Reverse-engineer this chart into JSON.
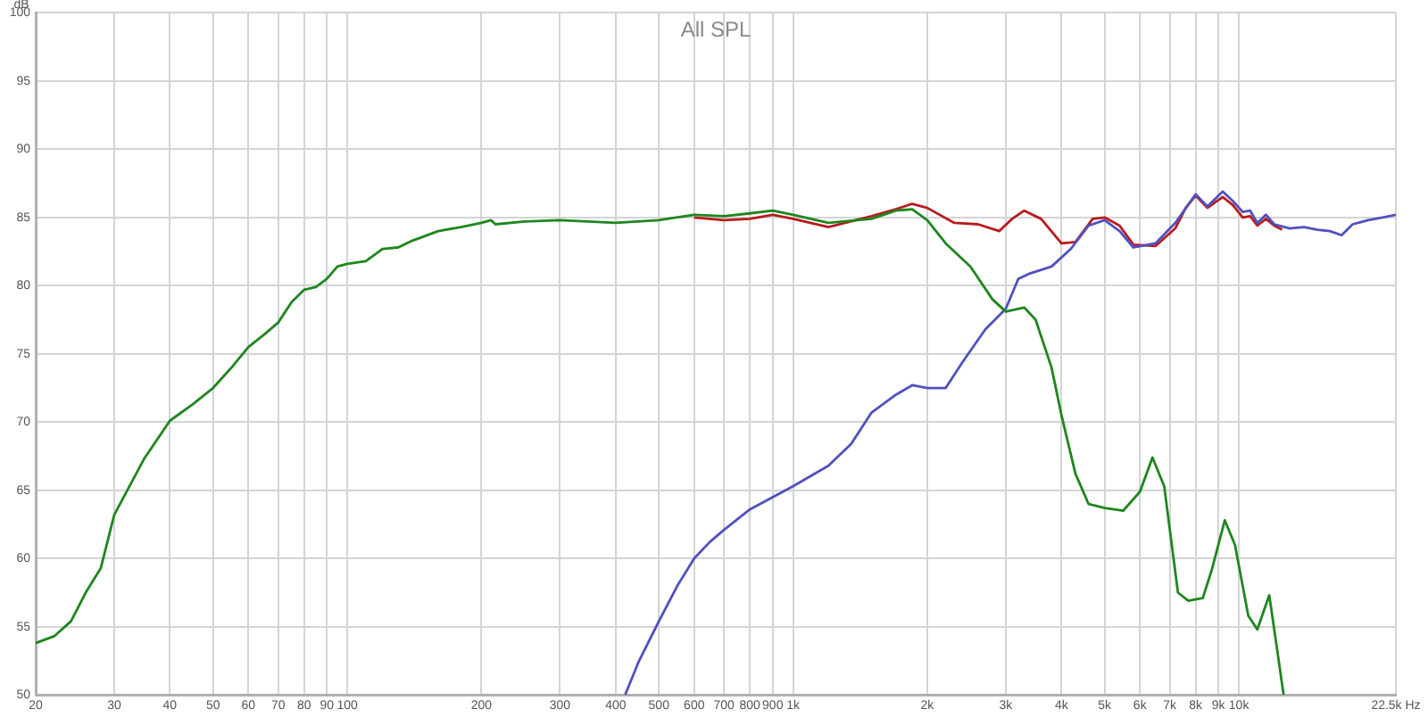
{
  "chart_data": {
    "type": "line",
    "title": "All SPL",
    "ylabel": "dB",
    "log": "x",
    "grid": true,
    "marker": "none",
    "line_style": "solid",
    "xlim": [
      20,
      22500
    ],
    "ylim": [
      50,
      100
    ],
    "xticks": [
      20,
      30,
      40,
      50,
      60,
      70,
      80,
      90,
      100,
      200,
      300,
      400,
      500,
      600,
      700,
      800,
      900,
      {
        "value": 1000,
        "label": "1k"
      },
      {
        "value": 2000,
        "label": "2k"
      },
      {
        "value": 3000,
        "label": "3k"
      },
      {
        "value": 4000,
        "label": "4k"
      },
      {
        "value": 5000,
        "label": "5k"
      },
      {
        "value": 6000,
        "label": "6k"
      },
      {
        "value": 7000,
        "label": "7k"
      },
      {
        "value": 8000,
        "label": "8k"
      },
      {
        "value": 9000,
        "label": "9k"
      },
      {
        "value": 10000,
        "label": "10k"
      },
      {
        "value": 22500,
        "label": "22.5k Hz"
      }
    ],
    "yticks": [
      50,
      55,
      60,
      65,
      70,
      75,
      80,
      85,
      90,
      95,
      100
    ],
    "series": [
      {
        "color": "#b81c1c",
        "x": [
          600,
          700,
          800,
          900,
          1000,
          1200,
          1500,
          1700,
          1850,
          2000,
          2300,
          2600,
          2900,
          3100,
          3300,
          3600,
          4000,
          4300,
          4700,
          5000,
          5400,
          5800,
          6500,
          7200,
          7600,
          8000,
          8500,
          9200,
          9700,
          10200,
          10600,
          11000,
          11500,
          12000,
          12500
        ],
        "values": [
          85.0,
          84.8,
          84.9,
          85.2,
          84.9,
          84.3,
          85.1,
          85.6,
          86.0,
          85.7,
          84.6,
          84.5,
          84.0,
          84.9,
          85.5,
          84.9,
          83.1,
          83.2,
          84.9,
          85.0,
          84.4,
          83.0,
          82.9,
          84.2,
          85.7,
          86.6,
          85.7,
          86.5,
          85.9,
          85.0,
          85.1,
          84.4,
          84.9,
          84.4,
          84.1
        ]
      },
      {
        "color": "#5050c0",
        "x": [
          420,
          450,
          500,
          550,
          600,
          650,
          700,
          800,
          900,
          1000,
          1200,
          1350,
          1500,
          1700,
          1850,
          2000,
          2200,
          2400,
          2700,
          3000,
          3200,
          3400,
          3800,
          4200,
          4600,
          5000,
          5400,
          5800,
          6500,
          7200,
          8000,
          8500,
          9200,
          9700,
          10200,
          10600,
          11000,
          11500,
          12000,
          13000,
          14000,
          15000,
          16000,
          17000,
          18000,
          19500,
          21000,
          22500
        ],
        "values": [
          50,
          52.4,
          55.4,
          58.0,
          60.0,
          61.2,
          62.1,
          63.6,
          64.5,
          65.3,
          66.8,
          68.4,
          70.7,
          72.0,
          72.7,
          72.5,
          72.5,
          74.4,
          76.8,
          78.3,
          80.5,
          80.9,
          81.4,
          82.7,
          84.4,
          84.8,
          84.0,
          82.8,
          83.1,
          84.6,
          86.7,
          85.8,
          86.9,
          86.2,
          85.4,
          85.5,
          84.6,
          85.2,
          84.5,
          84.2,
          84.3,
          84.1,
          84.0,
          83.7,
          84.5,
          84.8,
          85.0,
          85.2
        ]
      },
      {
        "color": "#1e861e",
        "x": [
          20,
          22,
          24,
          26,
          28,
          30,
          35,
          40,
          45,
          50,
          55,
          60,
          65,
          70,
          75,
          80,
          85,
          90,
          95,
          100,
          110,
          120,
          130,
          140,
          160,
          180,
          200,
          210,
          215,
          250,
          300,
          400,
          500,
          600,
          700,
          800,
          900,
          1000,
          1200,
          1500,
          1700,
          1850,
          2000,
          2200,
          2500,
          2800,
          3000,
          3300,
          3500,
          3800,
          4000,
          4300,
          4600,
          5000,
          5500,
          6000,
          6400,
          6800,
          7300,
          7700,
          8300,
          8700,
          9300,
          9800,
          10500,
          11000,
          11700,
          12200,
          12600
        ],
        "values": [
          53.8,
          54.3,
          55.4,
          57.6,
          59.3,
          63.2,
          67.3,
          70.1,
          71.3,
          72.5,
          74.0,
          75.5,
          76.4,
          77.3,
          78.8,
          79.7,
          79.9,
          80.5,
          81.4,
          81.6,
          81.8,
          82.7,
          82.8,
          83.3,
          84.0,
          84.3,
          84.6,
          84.8,
          84.5,
          84.7,
          84.8,
          84.6,
          84.8,
          85.2,
          85.1,
          85.3,
          85.5,
          85.2,
          84.6,
          84.9,
          85.5,
          85.6,
          84.8,
          83.1,
          81.4,
          79.0,
          78.1,
          78.4,
          77.5,
          74.0,
          70.5,
          66.2,
          64.0,
          63.7,
          63.5,
          64.9,
          67.4,
          65.3,
          57.5,
          56.9,
          57.1,
          59.2,
          62.8,
          61.0,
          55.8,
          54.8,
          57.3,
          53.2,
          50
        ]
      }
    ]
  }
}
